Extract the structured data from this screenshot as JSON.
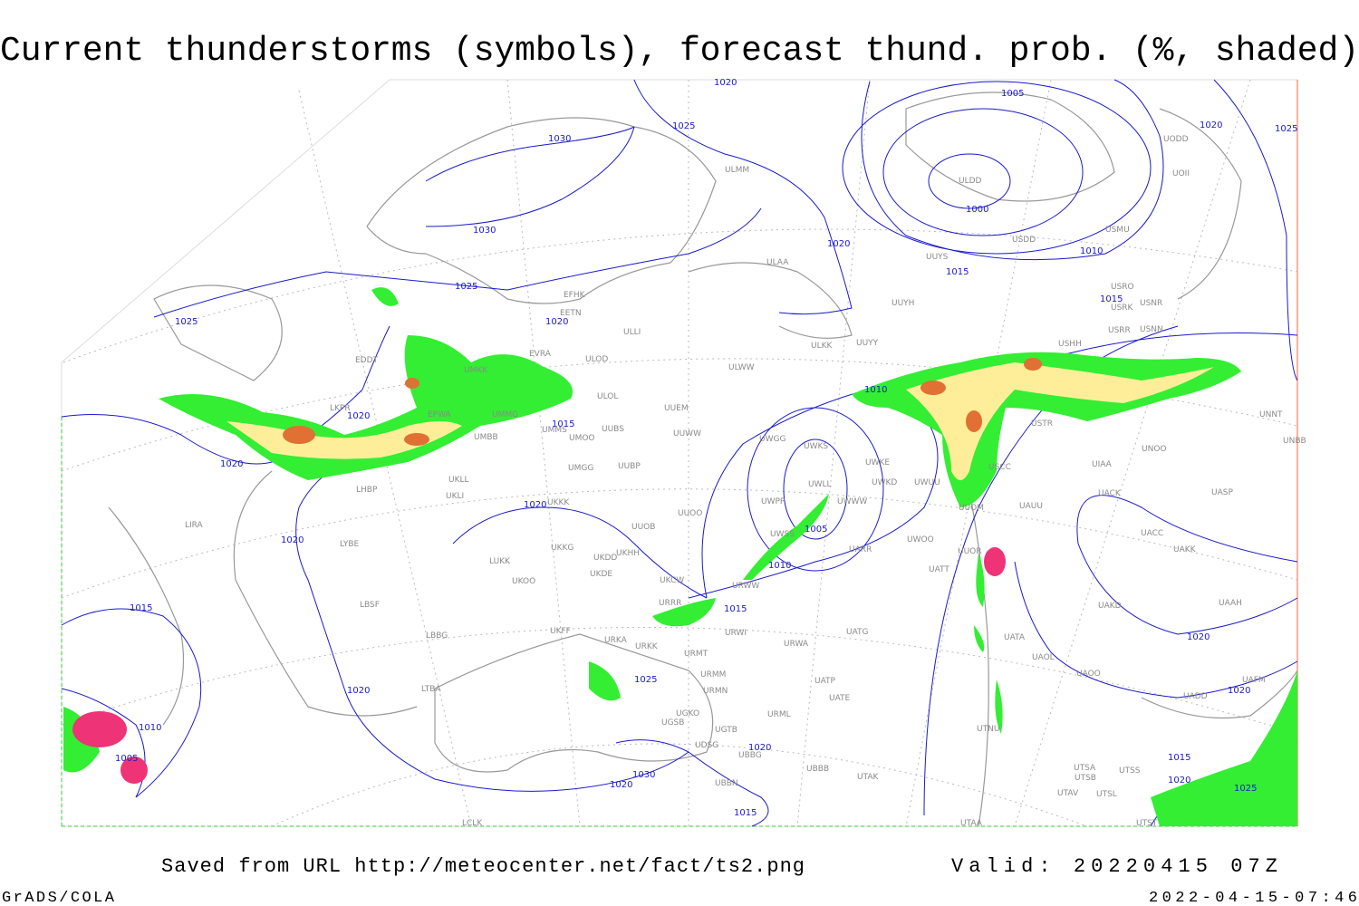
{
  "header": {
    "title": "Current thunderstorms (symbols), forecast thund. prob. (%, shaded)"
  },
  "isobars": [
    1020,
    1025,
    1030,
    1030,
    1025,
    1025,
    1020,
    1015,
    1020,
    1020,
    1020,
    1020,
    1015,
    1020,
    1010,
    1005,
    1025,
    1030,
    1020,
    1020,
    1015,
    1015,
    1010,
    1005,
    1010,
    1000,
    1005,
    1010,
    1015,
    1015,
    1020,
    1020,
    1025,
    1020,
    1020,
    1015,
    1020,
    1025
  ],
  "stations": [
    "ULMM",
    "ULAA",
    "EFHK",
    "EETN",
    "ULLI",
    "ULOD",
    "ULOL",
    "EVRA",
    "UMKK",
    "EDDT",
    "EPWA",
    "UMMG",
    "UMMS",
    "UMBB",
    "UMOO",
    "UUBS",
    "UUEM",
    "UUWW",
    "ULWW",
    "ULKK",
    "UUYY",
    "UUYH",
    "LKPR",
    "LHBP",
    "UKLL",
    "UKLI",
    "UMGG",
    "UUBP",
    "UKKK",
    "UUOO",
    "UUOB",
    "UKHH",
    "UKKG",
    "UKDD",
    "UKDE",
    "UKCW",
    "LUKK",
    "UKOO",
    "LYBE",
    "LIRA",
    "LBSF",
    "LBBG",
    "UKFF",
    "URKA",
    "URKK",
    "URRR",
    "URWW",
    "URWI",
    "URMT",
    "URMM",
    "URMN",
    "UGKO",
    "UGTB",
    "UDSG",
    "UBBG",
    "UBBN",
    "UBBB",
    "LTBA",
    "UGSB",
    "URML",
    "UATE",
    "UATT",
    "UATG",
    "URWA",
    "UATP",
    "UTAK",
    "LCLK",
    "UTAA",
    "UARR",
    "UWOO",
    "UWKE",
    "UWKD",
    "UWUU",
    "UWGG",
    "UWKS",
    "UWLL",
    "UWWW",
    "UWPP",
    "UWSS",
    "USCC",
    "USTR",
    "USHH",
    "USRR",
    "USNN",
    "USRK",
    "USNR",
    "USRO",
    "USMU",
    "USDD",
    "UUYS",
    "ULDD",
    "UODD",
    "UOII",
    "UNNT",
    "UNBB",
    "UNOO",
    "UIAA",
    "UACK",
    "UASP",
    "UACC",
    "UAKK",
    "UAKD",
    "UAAH",
    "UATA",
    "UAOL",
    "UAOO",
    "UADD",
    "UAFM",
    "UTNU",
    "UTSA",
    "UTSS",
    "UTSB",
    "UTAV",
    "UTSL",
    "UTST",
    "UUOR",
    "UAUU",
    "UUOM"
  ],
  "footer": {
    "source": "Saved from URL  http://meteocenter.net/fact/ts2.png",
    "valid": "Valid: 20220415 07Z",
    "software": "GrADS/COLA",
    "timestamp": "2022-04-15-07:46"
  }
}
